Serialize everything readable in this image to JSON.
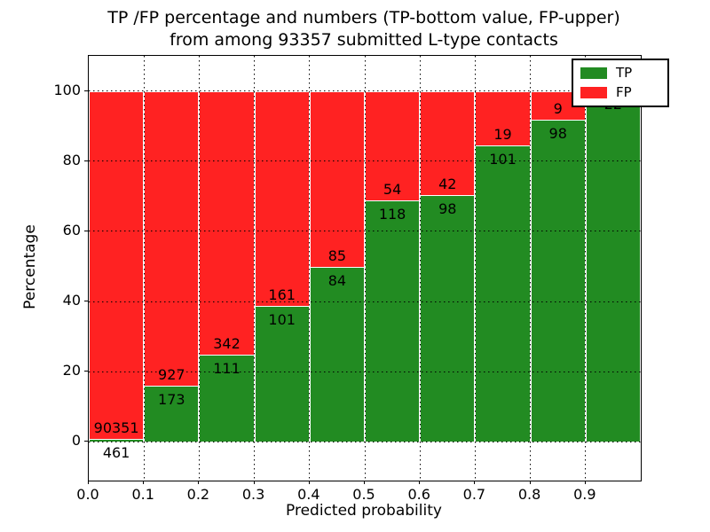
{
  "chart_data": {
    "type": "bar",
    "stacked": true,
    "title": "TP /FP percentage and numbers (TP-bottom value, FP-upper)\nfrom among 93357 submitted L-type contacts",
    "xlabel": "Predicted probability",
    "ylabel": "Percentage",
    "total_submitted_contacts": 93357,
    "xlim": [
      0.0,
      1.0
    ],
    "ylim": [
      -11,
      110
    ],
    "x_ticks": [
      "0.0",
      "0.1",
      "0.2",
      "0.3",
      "0.4",
      "0.5",
      "0.6",
      "0.7",
      "0.8",
      "0.9"
    ],
    "y_ticks": [
      0,
      20,
      40,
      60,
      80,
      100
    ],
    "grid": true,
    "bar_values_note": "bars show TP percentage (green, bottom) and FP percentage (red, top) per bin; annotated numbers are raw TP (below boundary) and FP (above boundary) counts",
    "bins": [
      {
        "range": [
          0.0,
          0.1
        ],
        "tp": 461,
        "fp": 90351
      },
      {
        "range": [
          0.1,
          0.2
        ],
        "tp": 173,
        "fp": 927
      },
      {
        "range": [
          0.2,
          0.3
        ],
        "tp": 111,
        "fp": 342
      },
      {
        "range": [
          0.3,
          0.4
        ],
        "tp": 101,
        "fp": 161
      },
      {
        "range": [
          0.4,
          0.5
        ],
        "tp": 84,
        "fp": 85
      },
      {
        "range": [
          0.5,
          0.6
        ],
        "tp": 118,
        "fp": 54
      },
      {
        "range": [
          0.6,
          0.7
        ],
        "tp": 98,
        "fp": 42
      },
      {
        "range": [
          0.7,
          0.8
        ],
        "tp": 101,
        "fp": 19
      },
      {
        "range": [
          0.8,
          0.9
        ],
        "tp": 98,
        "fp": 9
      },
      {
        "range": [
          0.9,
          1.0
        ],
        "tp": 22,
        "fp": 0
      }
    ],
    "colors": {
      "tp": "#228b22",
      "fp": "#ff2222"
    },
    "legend": {
      "position": "upper right",
      "entries": [
        {
          "label": "TP",
          "color": "#228b22"
        },
        {
          "label": "FP",
          "color": "#ff2222"
        }
      ]
    }
  }
}
